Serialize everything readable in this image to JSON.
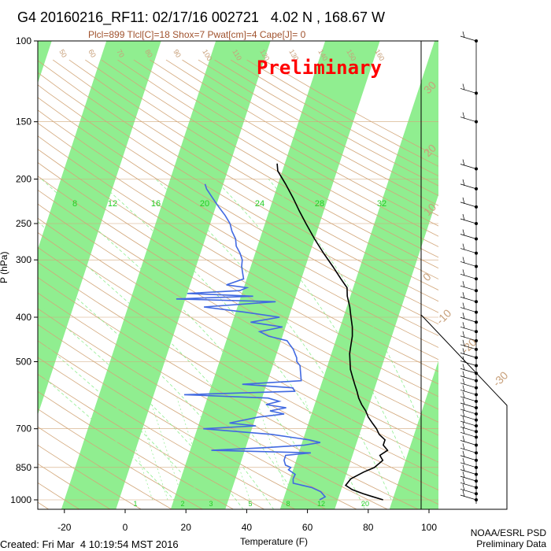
{
  "header": {
    "title": "G4 20160216_RF11: 02/17/16 002721   4.02 N , 168.67 W",
    "subtitle": "Plcl=899 Tlcl[C]=18 Shox=7 Pwat[cm]=4 Cape[J]= 0"
  },
  "stamp": "Preliminary",
  "footer": {
    "created": "Created: Fri Mar  4 10:19:54 MST 2016",
    "org": "NOAA/ESRL PSD",
    "note": "Preliminary Data"
  },
  "colors": {
    "band": "#90ee90",
    "temperature": "#000000",
    "dewpoint": "#4169e1",
    "dry_adiabat": "#d2a679",
    "moist_adiabat": "#90ee90",
    "axis": "#000000",
    "isotherm_label": "#c8a07a"
  },
  "chart_data": {
    "type": "line",
    "title": "G4 20160216_RF11: 02/17/16 002721   4.02 N , 168.67 W",
    "xlabel": "Temperature (F)",
    "ylabel": "P (hPa)",
    "xlim": [
      -28,
      115
    ],
    "ylim": [
      1050,
      100
    ],
    "y_scale": "log",
    "x_ticks": [
      -20,
      0,
      20,
      40,
      60,
      80,
      100
    ],
    "x_tick_labels": [
      "-20",
      "0",
      "20",
      "40",
      "60",
      "80",
      "100"
    ],
    "y_ticks": [
      100,
      150,
      200,
      250,
      300,
      400,
      500,
      700,
      850,
      1000
    ],
    "y_tick_labels": [
      "100",
      "150",
      "200",
      "250",
      "300",
      "400",
      "500",
      "700",
      "850",
      "1000"
    ],
    "mixing_ratio_labels": [
      "8",
      "12",
      "16",
      "20",
      "24",
      "28",
      "32"
    ],
    "lower_mixing_ratio_labels": [
      "1",
      "2",
      "3",
      "5",
      "8",
      "12",
      "20"
    ],
    "isotherm_labels_right": [
      "30",
      "20",
      "10",
      "0",
      "-10",
      "-20",
      "-30"
    ],
    "dry_adiabat_labels": [
      "50",
      "60",
      "70",
      "80",
      "90",
      "100",
      "110",
      "120",
      "130",
      "140",
      "150",
      "160"
    ],
    "series": [
      {
        "key": "temperature",
        "p": [
          1000,
          985,
          970,
          950,
          930,
          900,
          870,
          850,
          820,
          800,
          780,
          760,
          740,
          720,
          700,
          680,
          660,
          640,
          620,
          600,
          580,
          560,
          540,
          520,
          500,
          480,
          460,
          440,
          420,
          400,
          380,
          360,
          345,
          330,
          310,
          290,
          270,
          250,
          235,
          220,
          205,
          192,
          185
        ],
        "t": [
          84.9,
          81.3,
          77.7,
          73.6,
          71.0,
          72.0,
          75.5,
          78.5,
          80.5,
          79.0,
          81.0,
          79.0,
          79.0,
          76.5,
          75.0,
          73.0,
          71.0,
          69.5,
          67.5,
          65.8,
          64.5,
          63.0,
          61.5,
          60.0,
          59.0,
          58.0,
          57.5,
          57.0,
          56.0,
          54.5,
          53.0,
          51.0,
          50.0,
          47.0,
          43.0,
          38.5,
          34.0,
          29.5,
          26.0,
          22.5,
          18.5,
          14.5,
          13.5
        ]
      },
      {
        "key": "dewpoint",
        "p": [
          1000,
          985,
          960,
          940,
          920,
          900,
          880,
          860,
          850,
          840,
          820,
          800,
          790,
          780,
          770,
          760,
          750,
          740,
          720,
          700,
          690,
          680,
          660,
          650,
          640,
          630,
          620,
          610,
          600,
          590,
          580,
          570,
          560,
          550,
          540,
          530,
          520,
          510,
          500,
          490,
          480,
          470,
          460,
          450,
          440,
          430,
          420,
          410,
          400,
          390,
          380,
          370,
          365,
          360,
          355,
          350,
          345,
          340,
          330,
          320,
          310,
          300,
          290,
          280,
          270,
          260,
          250,
          240,
          230,
          220,
          210,
          205
        ],
        "t": [
          64.0,
          65.5,
          63.5,
          60.0,
          53.5,
          53.0,
          53.2,
          50.5,
          51.0,
          49.0,
          48.0,
          48.0,
          56.0,
          23.0,
          40.0,
          53.0,
          58.0,
          54.0,
          41.0,
          18.0,
          35.0,
          26.0,
          35.0,
          43.0,
          38.0,
          43.0,
          36.0,
          40.0,
          36.0,
          8.0,
          44.0,
          43.0,
          26.0,
          45.0,
          44.5,
          44.0,
          43.5,
          43.0,
          41.5,
          41.0,
          40.0,
          39.0,
          37.5,
          36.0,
          29.5,
          26.0,
          33.0,
          22.0,
          31.0,
          19.0,
          5.0,
          28.0,
          -5.0,
          20.0,
          -2.0,
          15.0,
          17.0,
          10.0,
          15.0,
          14.0,
          13.0,
          12.5,
          11.0,
          9.0,
          8.0,
          6.0,
          4.5,
          2.0,
          -1.0,
          -4.0,
          -7.0,
          -8.0
        ]
      }
    ]
  }
}
